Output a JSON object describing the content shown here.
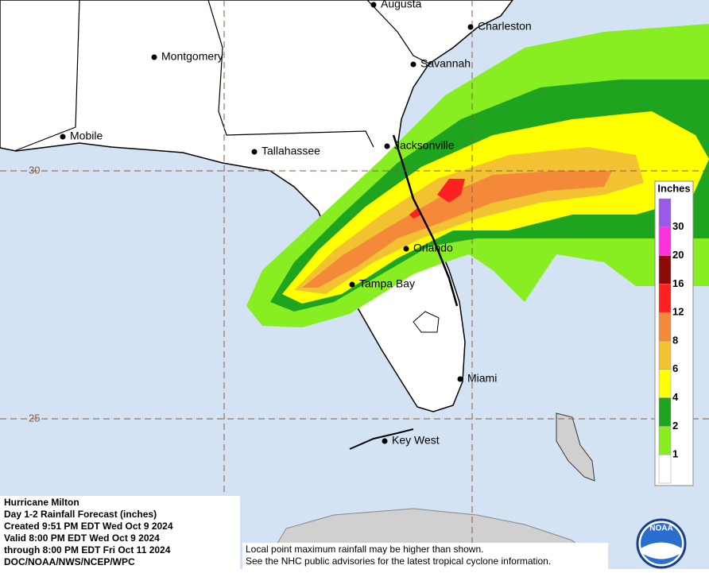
{
  "map": {
    "cities": [
      "Augusta",
      "Charleston",
      "Montgomery",
      "Savannah",
      "Mobile",
      "Tallahassee",
      "Jacksonville",
      "Orlando",
      "Tampa Bay",
      "Miami",
      "Key West"
    ],
    "latitude_labels": [
      "30",
      "25"
    ],
    "legend": {
      "title": "Inches",
      "levels": [
        {
          "label": null,
          "color": "#9b59e8"
        },
        {
          "label": "30",
          "color": "#ff33dd"
        },
        {
          "label": "20",
          "color": "#8b0a0a"
        },
        {
          "label": "16",
          "color": "#ff2020"
        },
        {
          "label": "12",
          "color": "#f5893a"
        },
        {
          "label": "8",
          "color": "#f2c233"
        },
        {
          "label": "6",
          "color": "#ffff00"
        },
        {
          "label": "4",
          "color": "#1fa41f"
        },
        {
          "label": "2",
          "color": "#88ee22"
        },
        {
          "label": "1",
          "color": "#ffffff"
        }
      ]
    },
    "info": [
      "Hurricane Milton",
      "Day 1-2 Rainfall Forecast (inches)",
      "Created 9:51 PM EDT Wed Oct 9 2024",
      "Valid 8:00 PM EDT Wed Oct 9 2024",
      "through 8:00 PM EDT Fri Oct 11 2024",
      "DOC/NOAA/NWS/NCEP/WPC"
    ],
    "note": [
      "Local point maximum rainfall may be higher than shown.",
      "See the NHC public advisories for the latest tropical cyclone information."
    ],
    "logo": "NOAA"
  }
}
